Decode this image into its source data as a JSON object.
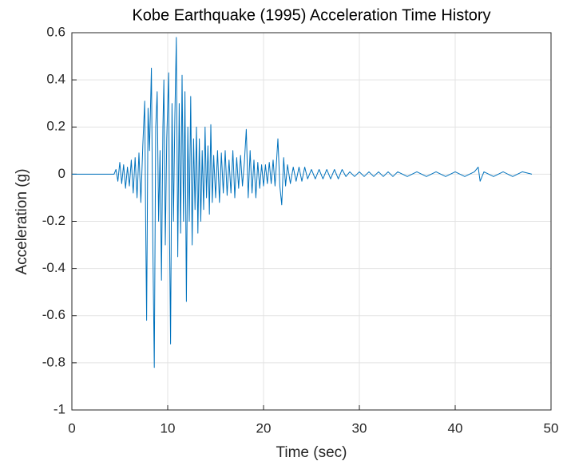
{
  "chart_data": {
    "type": "line",
    "title": "Kobe Earthquake (1995) Acceleration Time History",
    "x_label": "Time (sec)",
    "y_label": "Acceleration (g)",
    "xlim": [
      0,
      50
    ],
    "xticks": [
      0,
      10,
      20,
      30,
      40,
      50
    ],
    "ylim": [
      -1,
      0.6
    ],
    "yticks": [
      -1,
      -0.8,
      -0.6,
      -0.4,
      -0.2,
      0,
      0.2,
      0.4,
      0.6
    ],
    "grid": true,
    "series": [
      {
        "color": "#0072bd",
        "x": [
          0,
          4.4,
          4.6,
          4.8,
          5.0,
          5.2,
          5.4,
          5.6,
          5.8,
          6.0,
          6.2,
          6.4,
          6.6,
          6.8,
          7.0,
          7.2,
          7.4,
          7.6,
          7.7,
          7.8,
          7.95,
          8.1,
          8.3,
          8.45,
          8.6,
          8.75,
          8.9,
          9.05,
          9.2,
          9.35,
          9.5,
          9.6,
          9.75,
          9.9,
          10.1,
          10.2,
          10.3,
          10.45,
          10.6,
          10.75,
          10.9,
          11.05,
          11.2,
          11.35,
          11.5,
          11.65,
          11.8,
          11.95,
          12.1,
          12.25,
          12.4,
          12.55,
          12.7,
          12.85,
          13.0,
          13.15,
          13.3,
          13.45,
          13.6,
          13.75,
          13.9,
          14.05,
          14.2,
          14.35,
          14.5,
          14.65,
          14.8,
          15.0,
          15.2,
          15.4,
          15.6,
          15.8,
          16.0,
          16.2,
          16.4,
          16.6,
          16.8,
          17.0,
          17.2,
          17.4,
          17.6,
          17.8,
          18.0,
          18.2,
          18.4,
          18.6,
          18.8,
          19.0,
          19.2,
          19.4,
          19.6,
          19.8,
          20.0,
          20.2,
          20.4,
          20.6,
          20.8,
          21.0,
          21.2,
          21.5,
          21.7,
          21.9,
          22.1,
          22.3,
          22.5,
          22.8,
          23.1,
          23.4,
          23.7,
          24.0,
          24.3,
          24.6,
          25.0,
          25.4,
          25.8,
          26.2,
          26.6,
          27.0,
          27.4,
          27.8,
          28.2,
          28.6,
          29.0,
          29.5,
          30.0,
          30.5,
          31.0,
          31.5,
          32.0,
          32.5,
          33.0,
          33.5,
          34.0,
          35.0,
          36.0,
          37.0,
          38.0,
          39.0,
          40.0,
          41.0,
          42.0,
          42.4,
          42.6,
          43.0,
          44.0,
          45.0,
          46.0,
          47.0,
          48.0
        ],
        "values": [
          0,
          0,
          0.02,
          -0.03,
          0.05,
          -0.04,
          0.04,
          -0.06,
          0.03,
          -0.05,
          0.06,
          -0.08,
          0.07,
          -0.1,
          0.09,
          -0.12,
          0.12,
          0.31,
          -0.2,
          -0.62,
          0.28,
          0.1,
          0.45,
          -0.3,
          -0.82,
          0.2,
          0.35,
          -0.2,
          0.1,
          -0.45,
          0.2,
          0.4,
          -0.3,
          0.15,
          0.43,
          -0.3,
          -0.72,
          0.3,
          -0.2,
          0.25,
          0.58,
          -0.35,
          0.3,
          -0.25,
          0.42,
          -0.2,
          0.35,
          -0.54,
          0.2,
          -0.2,
          0.33,
          -0.3,
          0.15,
          -0.15,
          0.2,
          -0.25,
          0.15,
          -0.2,
          0.1,
          -0.15,
          0.2,
          -0.1,
          0.12,
          -0.17,
          0.21,
          -0.12,
          0.08,
          -0.1,
          0.1,
          -0.12,
          0.09,
          -0.08,
          0.1,
          -0.09,
          0.06,
          -0.08,
          0.1,
          -0.1,
          0.07,
          -0.06,
          0.08,
          -0.05,
          0.05,
          0.19,
          -0.1,
          0.1,
          -0.08,
          0.06,
          -0.1,
          0.05,
          -0.06,
          0.04,
          -0.05,
          0.04,
          -0.04,
          0.05,
          -0.04,
          0.06,
          -0.05,
          0.15,
          -0.05,
          -0.13,
          0.07,
          -0.05,
          0.04,
          -0.04,
          0.03,
          -0.03,
          0.03,
          -0.03,
          0.03,
          -0.02,
          0.02,
          -0.02,
          0.02,
          -0.02,
          0.02,
          -0.02,
          0.02,
          -0.02,
          0.02,
          -0.01,
          0.01,
          -0.01,
          0.01,
          -0.01,
          0.01,
          -0.01,
          0.01,
          -0.01,
          0.01,
          -0.01,
          0.01,
          -0.01,
          0.01,
          -0.01,
          0.01,
          -0.01,
          0.01,
          -0.01,
          0.01,
          0.03,
          -0.03,
          0.01,
          -0.01,
          0.01,
          -0.01,
          0.01,
          0
        ]
      }
    ]
  }
}
